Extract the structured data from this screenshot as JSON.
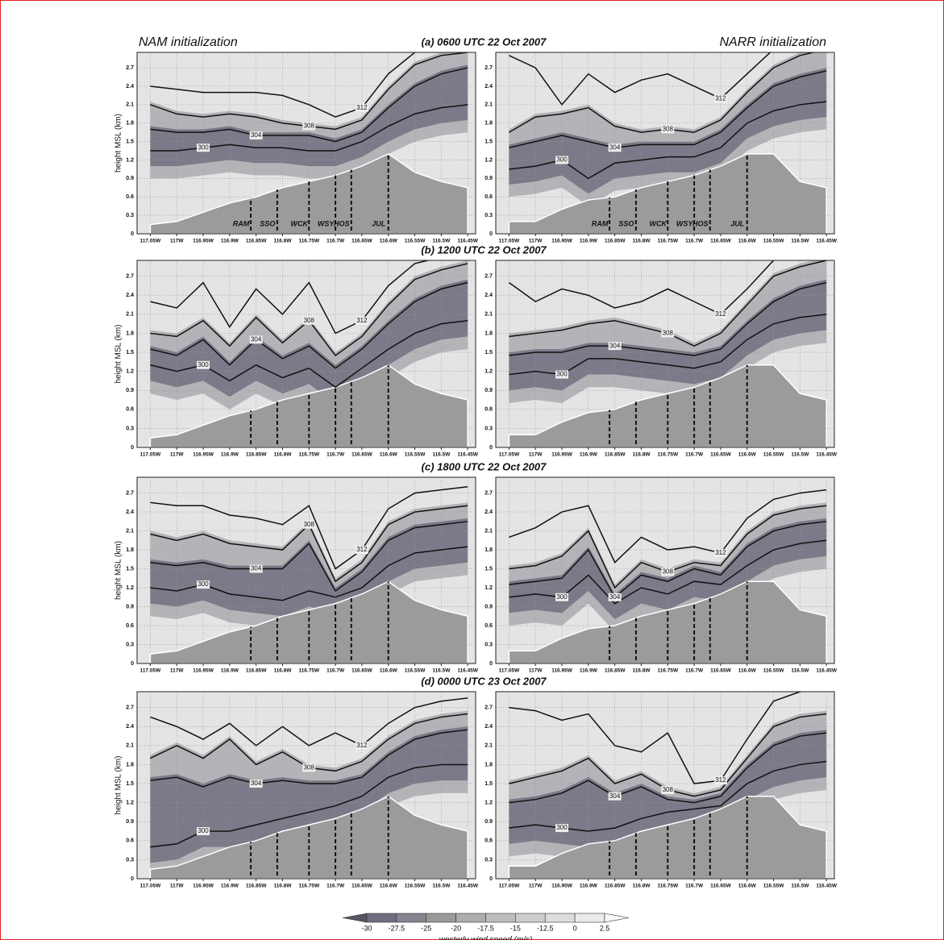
{
  "chart_data": {
    "type": "contour",
    "headers": [
      "NAM initialization",
      "NARR initialization"
    ],
    "ylabel": "height MSL (km)",
    "xlim": [
      -117.075,
      -116.435
    ],
    "ylim": [
      0,
      2.95
    ],
    "xticks": [
      {
        "value": -117.05,
        "label": "117.05W"
      },
      {
        "value": -117.0,
        "label": "117W"
      },
      {
        "value": -116.95,
        "label": "116.95W"
      },
      {
        "value": -116.9,
        "label": "116.9W"
      },
      {
        "value": -116.85,
        "label": "116.85W"
      },
      {
        "value": -116.8,
        "label": "116.8W"
      },
      {
        "value": -116.75,
        "label": "116.75W"
      },
      {
        "value": -116.7,
        "label": "116.7W"
      },
      {
        "value": -116.65,
        "label": "116.65W"
      },
      {
        "value": -116.6,
        "label": "116.6W"
      },
      {
        "value": -116.55,
        "label": "116.55W"
      },
      {
        "value": -116.5,
        "label": "116.5W"
      },
      {
        "value": -116.45,
        "label": "116.45W"
      }
    ],
    "yticks": [
      0,
      0.3,
      0.6,
      0.9,
      1.2,
      1.5,
      1.8,
      2.1,
      2.4,
      2.7
    ],
    "grid": true,
    "line_color": "#111111",
    "terrain_color": "#9b9b9b",
    "x": [
      -117.05,
      -117.0,
      -116.95,
      -116.9,
      -116.85,
      -116.8,
      -116.75,
      -116.7,
      -116.65,
      -116.6,
      -116.55,
      -116.5,
      -116.45
    ],
    "stations": [
      "RAM",
      "SSO",
      "WCK",
      "WSY",
      "HOS",
      "JUL"
    ],
    "station_x": [
      -116.86,
      -116.81,
      -116.75,
      -116.7,
      -116.67,
      -116.6
    ],
    "panels": [
      {
        "title": "(a) 0600 UTC 22 Oct 2007",
        "terrain": [
          0.15,
          0.2,
          0.35,
          0.5,
          0.6,
          0.75,
          0.85,
          0.95,
          1.1,
          1.3,
          1.0,
          0.85,
          0.75
        ],
        "series": [
          {
            "name": "300",
            "values": [
              1.35,
              1.35,
              1.4,
              1.45,
              1.4,
              1.4,
              1.35,
              1.35,
              1.5,
              1.75,
              1.95,
              2.05,
              2.1
            ]
          },
          {
            "name": "304",
            "values": [
              1.7,
              1.65,
              1.65,
              1.7,
              1.6,
              1.6,
              1.6,
              1.5,
              1.65,
              2.05,
              2.4,
              2.6,
              2.7
            ]
          },
          {
            "name": "308",
            "values": [
              2.1,
              1.95,
              1.9,
              1.95,
              1.9,
              1.8,
              1.75,
              1.7,
              1.85,
              2.35,
              2.75,
              2.9,
              2.95
            ]
          },
          {
            "name": "312",
            "values": [
              2.4,
              2.35,
              2.3,
              2.3,
              2.3,
              2.25,
              2.1,
              1.9,
              2.05,
              2.6,
              2.95,
              3.1,
              3.2
            ]
          }
        ]
      },
      {
        "terrain": [
          0.2,
          0.2,
          0.4,
          0.55,
          0.6,
          0.75,
          0.85,
          0.95,
          1.1,
          1.3,
          1.3,
          0.85,
          0.75
        ],
        "series": [
          {
            "name": "300",
            "values": [
              1.05,
              1.1,
              1.2,
              0.9,
              1.15,
              1.2,
              1.25,
              1.25,
              1.4,
              1.8,
              2.0,
              2.1,
              2.15
            ]
          },
          {
            "name": "304",
            "values": [
              1.4,
              1.5,
              1.6,
              1.5,
              1.4,
              1.45,
              1.45,
              1.45,
              1.65,
              2.05,
              2.4,
              2.55,
              2.65
            ]
          },
          {
            "name": "308",
            "values": [
              1.65,
              1.9,
              1.95,
              2.05,
              1.75,
              1.65,
              1.7,
              1.65,
              1.85,
              2.3,
              2.7,
              2.9,
              3.0
            ]
          },
          {
            "name": "312",
            "values": [
              2.9,
              2.7,
              2.1,
              2.6,
              2.3,
              2.5,
              2.6,
              2.4,
              2.2,
              2.6,
              3.0,
              3.1,
              3.2
            ]
          }
        ]
      },
      {
        "title": "(b) 1200 UTC 22 Oct 2007",
        "terrain": [
          0.15,
          0.2,
          0.35,
          0.5,
          0.6,
          0.75,
          0.85,
          0.95,
          1.1,
          1.3,
          1.0,
          0.85,
          0.75
        ],
        "series": [
          {
            "name": "300",
            "values": [
              1.3,
              1.2,
              1.3,
              1.05,
              1.3,
              1.1,
              1.25,
              0.95,
              1.25,
              1.55,
              1.8,
              1.95,
              2.0
            ]
          },
          {
            "name": "304",
            "values": [
              1.55,
              1.45,
              1.7,
              1.3,
              1.7,
              1.4,
              1.6,
              1.25,
              1.55,
              1.95,
              2.3,
              2.5,
              2.6
            ]
          },
          {
            "name": "308",
            "values": [
              1.8,
              1.75,
              2.0,
              1.6,
              2.05,
              1.65,
              2.0,
              1.45,
              1.75,
              2.25,
              2.65,
              2.8,
              2.9
            ]
          },
          {
            "name": "312",
            "values": [
              2.3,
              2.2,
              2.6,
              1.9,
              2.5,
              2.1,
              2.6,
              1.8,
              2.0,
              2.55,
              2.9,
              3.0,
              3.1
            ]
          }
        ]
      },
      {
        "terrain": [
          0.2,
          0.2,
          0.4,
          0.55,
          0.6,
          0.75,
          0.85,
          0.95,
          1.1,
          1.3,
          1.3,
          0.85,
          0.75
        ],
        "series": [
          {
            "name": "300",
            "values": [
              1.15,
              1.2,
              1.15,
              1.4,
              1.4,
              1.35,
              1.3,
              1.25,
              1.35,
              1.7,
              1.95,
              2.05,
              2.1
            ]
          },
          {
            "name": "304",
            "values": [
              1.45,
              1.5,
              1.5,
              1.6,
              1.6,
              1.55,
              1.5,
              1.45,
              1.55,
              1.95,
              2.3,
              2.5,
              2.6
            ]
          },
          {
            "name": "308",
            "values": [
              1.75,
              1.8,
              1.85,
              1.95,
              2.0,
              1.9,
              1.8,
              1.6,
              1.8,
              2.25,
              2.7,
              2.85,
              2.95
            ]
          },
          {
            "name": "312",
            "values": [
              2.6,
              2.3,
              2.5,
              2.4,
              2.2,
              2.3,
              2.5,
              2.3,
              2.1,
              2.5,
              2.95,
              3.1,
              3.2
            ]
          }
        ]
      },
      {
        "title": "(c) 1800 UTC 22 Oct 2007",
        "terrain": [
          0.15,
          0.2,
          0.35,
          0.5,
          0.6,
          0.75,
          0.85,
          0.95,
          1.1,
          1.3,
          1.0,
          0.85,
          0.75
        ],
        "series": [
          {
            "name": "300",
            "values": [
              1.2,
              1.15,
              1.25,
              1.1,
              1.05,
              1.0,
              1.15,
              1.05,
              1.2,
              1.55,
              1.75,
              1.8,
              1.85
            ]
          },
          {
            "name": "304",
            "values": [
              1.6,
              1.55,
              1.6,
              1.5,
              1.5,
              1.5,
              1.9,
              1.15,
              1.45,
              1.95,
              2.15,
              2.2,
              2.25
            ]
          },
          {
            "name": "308",
            "values": [
              2.05,
              1.95,
              2.05,
              1.9,
              1.85,
              1.8,
              2.2,
              1.3,
              1.6,
              2.2,
              2.4,
              2.45,
              2.5
            ]
          },
          {
            "name": "312",
            "values": [
              2.55,
              2.5,
              2.5,
              2.35,
              2.3,
              2.2,
              2.5,
              1.5,
              1.8,
              2.45,
              2.7,
              2.75,
              2.8
            ]
          }
        ]
      },
      {
        "terrain": [
          0.2,
          0.2,
          0.4,
          0.55,
          0.6,
          0.75,
          0.85,
          0.95,
          1.1,
          1.3,
          1.3,
          0.85,
          0.75
        ],
        "series": [
          {
            "name": "300",
            "values": [
              1.05,
              1.1,
              1.05,
              1.4,
              0.95,
              1.2,
              1.1,
              1.3,
              1.25,
              1.55,
              1.8,
              1.9,
              1.95
            ]
          },
          {
            "name": "304",
            "values": [
              1.25,
              1.3,
              1.35,
              1.8,
              1.05,
              1.4,
              1.3,
              1.5,
              1.4,
              1.85,
              2.1,
              2.2,
              2.25
            ]
          },
          {
            "name": "308",
            "values": [
              1.5,
              1.55,
              1.7,
              2.1,
              1.2,
              1.6,
              1.45,
              1.6,
              1.55,
              2.05,
              2.35,
              2.45,
              2.5
            ]
          },
          {
            "name": "312",
            "values": [
              2.0,
              2.15,
              2.4,
              2.5,
              1.6,
              2.0,
              1.8,
              1.85,
              1.75,
              2.3,
              2.6,
              2.7,
              2.75
            ]
          }
        ]
      },
      {
        "title": "(d) 0000 UTC 23 Oct 2007",
        "terrain": [
          0.15,
          0.2,
          0.35,
          0.5,
          0.6,
          0.75,
          0.85,
          0.95,
          1.1,
          1.3,
          1.0,
          0.85,
          0.75
        ],
        "series": [
          {
            "name": "300",
            "values": [
              0.5,
              0.55,
              0.75,
              0.75,
              0.85,
              0.95,
              1.05,
              1.15,
              1.3,
              1.6,
              1.75,
              1.8,
              1.8
            ]
          },
          {
            "name": "304",
            "values": [
              1.55,
              1.6,
              1.45,
              1.6,
              1.5,
              1.55,
              1.5,
              1.5,
              1.6,
              1.95,
              2.2,
              2.3,
              2.35
            ]
          },
          {
            "name": "308",
            "values": [
              1.9,
              2.1,
              1.9,
              2.2,
              1.8,
              2.0,
              1.75,
              1.7,
              1.85,
              2.2,
              2.45,
              2.55,
              2.6
            ]
          },
          {
            "name": "312",
            "values": [
              2.55,
              2.4,
              2.2,
              2.45,
              2.1,
              2.4,
              2.1,
              2.3,
              2.1,
              2.45,
              2.7,
              2.8,
              2.85
            ]
          }
        ]
      },
      {
        "terrain": [
          0.2,
          0.2,
          0.4,
          0.55,
          0.6,
          0.75,
          0.85,
          0.95,
          1.1,
          1.3,
          1.3,
          0.85,
          0.75
        ],
        "series": [
          {
            "name": "300",
            "values": [
              0.8,
              0.85,
              0.8,
              0.75,
              0.8,
              0.95,
              1.05,
              1.1,
              1.15,
              1.5,
              1.7,
              1.8,
              1.85
            ]
          },
          {
            "name": "304",
            "values": [
              1.2,
              1.25,
              1.35,
              1.55,
              1.3,
              1.45,
              1.25,
              1.2,
              1.3,
              1.75,
              2.1,
              2.25,
              2.3
            ]
          },
          {
            "name": "308",
            "values": [
              1.5,
              1.6,
              1.7,
              1.9,
              1.5,
              1.65,
              1.4,
              1.3,
              1.4,
              1.9,
              2.4,
              2.55,
              2.6
            ]
          },
          {
            "name": "312",
            "values": [
              2.7,
              2.65,
              2.5,
              2.6,
              2.1,
              2.0,
              2.3,
              1.5,
              1.55,
              2.2,
              2.8,
              2.95,
              3.0
            ]
          }
        ]
      }
    ],
    "colorbar": {
      "label": "westerly wind speed (m/s)",
      "ticks": [
        -30,
        -27.5,
        -25,
        -20,
        -17.5,
        -15,
        -12.5,
        0,
        2.5
      ],
      "colors": [
        "#555566",
        "#6e6e80",
        "#85858f",
        "#9a9a9a",
        "#adadad",
        "#bdbdbd",
        "#cdcdcd",
        "#dcdcdc",
        "#ebebeb",
        "#f7f7f7"
      ]
    }
  }
}
